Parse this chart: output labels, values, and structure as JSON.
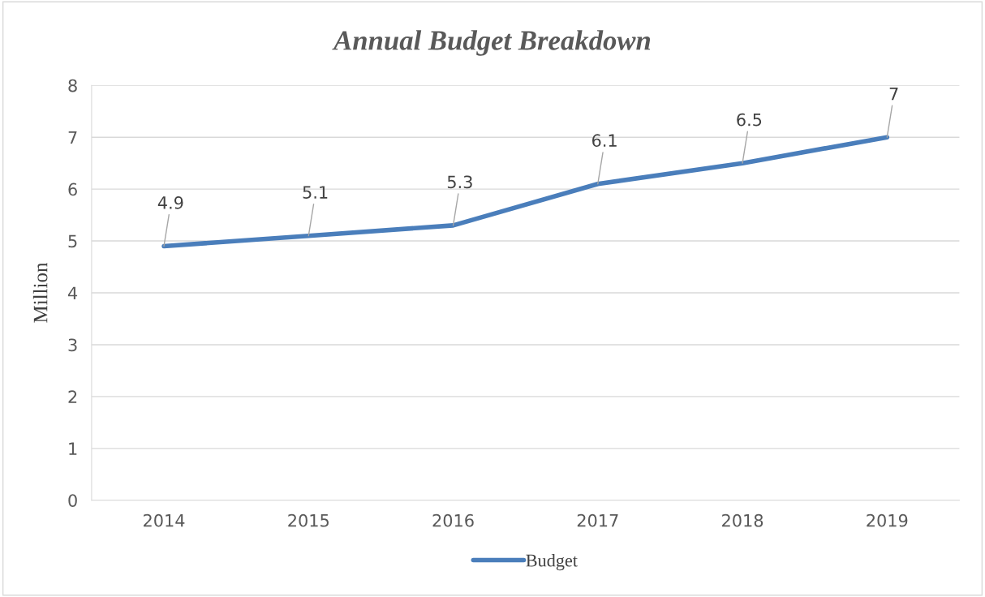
{
  "chart_data": {
    "type": "line",
    "title": "Annual Budget Breakdown",
    "ylabel": "Million",
    "categories": [
      "2014",
      "2015",
      "2016",
      "2017",
      "2018",
      "2019"
    ],
    "series": [
      {
        "name": "Budget",
        "color": "#4a7ebb",
        "values": [
          4.9,
          5.1,
          5.3,
          6.1,
          6.5,
          7
        ]
      }
    ],
    "ylim": [
      0,
      8
    ],
    "yticks": [
      0,
      1,
      2,
      3,
      4,
      5,
      6,
      7,
      8
    ],
    "grid": "y",
    "legend": "bottom",
    "data_labels": true,
    "marker": "none",
    "line_style": "solid"
  }
}
